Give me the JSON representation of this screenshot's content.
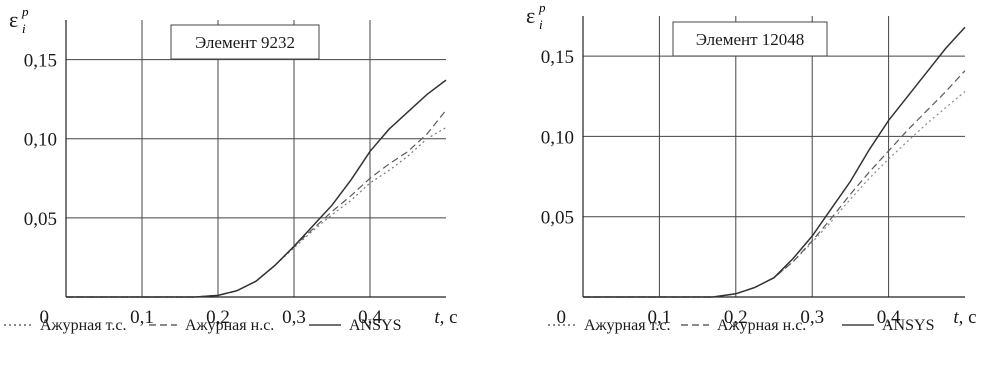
{
  "chart_data": [
    {
      "type": "line",
      "title": "Элемент 9232",
      "ylabel": "ε",
      "ylabel_sup": "p",
      "ylabel_sub": "i",
      "xlabel_var": "t",
      "xlabel_unit": ", c",
      "xlim": [
        0,
        0.5
      ],
      "ylim": [
        0,
        0.175
      ],
      "grid": true,
      "x_ticks": [
        {
          "v": 0,
          "label": "0"
        },
        {
          "v": 0.1,
          "label": "0,1"
        },
        {
          "v": 0.2,
          "label": "0,2"
        },
        {
          "v": 0.3,
          "label": "0,3"
        },
        {
          "v": 0.4,
          "label": "0,4"
        }
      ],
      "y_ticks": [
        {
          "v": 0.05,
          "label": "0,05"
        },
        {
          "v": 0.1,
          "label": "0,10"
        },
        {
          "v": 0.15,
          "label": "0,15"
        }
      ],
      "series": [
        {
          "name": "Ажурная т.с.",
          "style": "dotted",
          "color": "#7a7a7a",
          "x": [
            0,
            0.17,
            0.2,
            0.225,
            0.25,
            0.275,
            0.3,
            0.325,
            0.35,
            0.375,
            0.4,
            0.425,
            0.45,
            0.475,
            0.5
          ],
          "y": [
            0,
            0,
            0.001,
            0.004,
            0.01,
            0.02,
            0.031,
            0.042,
            0.052,
            0.061,
            0.072,
            0.08,
            0.089,
            0.1,
            0.107
          ]
        },
        {
          "name": "Ажурная н.с.",
          "style": "dashed",
          "color": "#5a5a5a",
          "x": [
            0,
            0.17,
            0.2,
            0.225,
            0.25,
            0.275,
            0.3,
            0.325,
            0.35,
            0.375,
            0.4,
            0.425,
            0.45,
            0.475,
            0.5
          ],
          "y": [
            0,
            0,
            0.001,
            0.004,
            0.01,
            0.02,
            0.032,
            0.043,
            0.054,
            0.064,
            0.075,
            0.084,
            0.092,
            0.103,
            0.118
          ]
        },
        {
          "name": "ANSYS",
          "style": "solid",
          "color": "#333333",
          "x": [
            0,
            0.17,
            0.2,
            0.225,
            0.25,
            0.275,
            0.3,
            0.325,
            0.35,
            0.375,
            0.4,
            0.425,
            0.45,
            0.475,
            0.5
          ],
          "y": [
            0,
            0,
            0.001,
            0.004,
            0.01,
            0.02,
            0.032,
            0.045,
            0.058,
            0.074,
            0.092,
            0.106,
            0.117,
            0.128,
            0.137
          ]
        }
      ]
    },
    {
      "type": "line",
      "title": "Элемент 12048",
      "ylabel": "ε",
      "ylabel_sup": "p",
      "ylabel_sub": "i",
      "xlabel_var": "t",
      "xlabel_unit": ", c",
      "xlim": [
        0,
        0.5
      ],
      "ylim": [
        0,
        0.175
      ],
      "grid": true,
      "x_ticks": [
        {
          "v": 0,
          "label": "0"
        },
        {
          "v": 0.1,
          "label": "0,1"
        },
        {
          "v": 0.2,
          "label": "0,2"
        },
        {
          "v": 0.3,
          "label": "0,3"
        },
        {
          "v": 0.4,
          "label": "0,4"
        }
      ],
      "y_ticks": [
        {
          "v": 0.05,
          "label": "0,05"
        },
        {
          "v": 0.1,
          "label": "0,10"
        },
        {
          "v": 0.15,
          "label": "0,15"
        }
      ],
      "series": [
        {
          "name": "Ажурная т.с.",
          "style": "dotted",
          "color": "#8a8a8a",
          "x": [
            0,
            0.17,
            0.2,
            0.225,
            0.25,
            0.275,
            0.3,
            0.325,
            0.35,
            0.375,
            0.4,
            0.425,
            0.45,
            0.475,
            0.5
          ],
          "y": [
            0,
            0,
            0.002,
            0.006,
            0.012,
            0.022,
            0.034,
            0.047,
            0.061,
            0.074,
            0.086,
            0.097,
            0.108,
            0.118,
            0.128
          ]
        },
        {
          "name": "Ажурная н.с.",
          "style": "dashed",
          "color": "#5a5a5a",
          "x": [
            0,
            0.17,
            0.2,
            0.225,
            0.25,
            0.275,
            0.3,
            0.325,
            0.35,
            0.375,
            0.4,
            0.425,
            0.45,
            0.475,
            0.5
          ],
          "y": [
            0,
            0,
            0.002,
            0.006,
            0.012,
            0.022,
            0.035,
            0.049,
            0.064,
            0.078,
            0.091,
            0.104,
            0.116,
            0.128,
            0.141
          ]
        },
        {
          "name": "ANSYS",
          "style": "solid",
          "color": "#333333",
          "x": [
            0,
            0.17,
            0.2,
            0.225,
            0.25,
            0.275,
            0.3,
            0.325,
            0.35,
            0.375,
            0.4,
            0.425,
            0.45,
            0.475,
            0.5
          ],
          "y": [
            0,
            0,
            0.002,
            0.006,
            0.012,
            0.024,
            0.038,
            0.055,
            0.072,
            0.092,
            0.11,
            0.125,
            0.14,
            0.155,
            0.168
          ]
        }
      ]
    }
  ],
  "legend": [
    {
      "label": "Ажурная т.с.",
      "style": "dotted"
    },
    {
      "label": "Ажурная н.с.",
      "style": "dashed"
    },
    {
      "label": "ANSYS",
      "style": "solid"
    }
  ]
}
